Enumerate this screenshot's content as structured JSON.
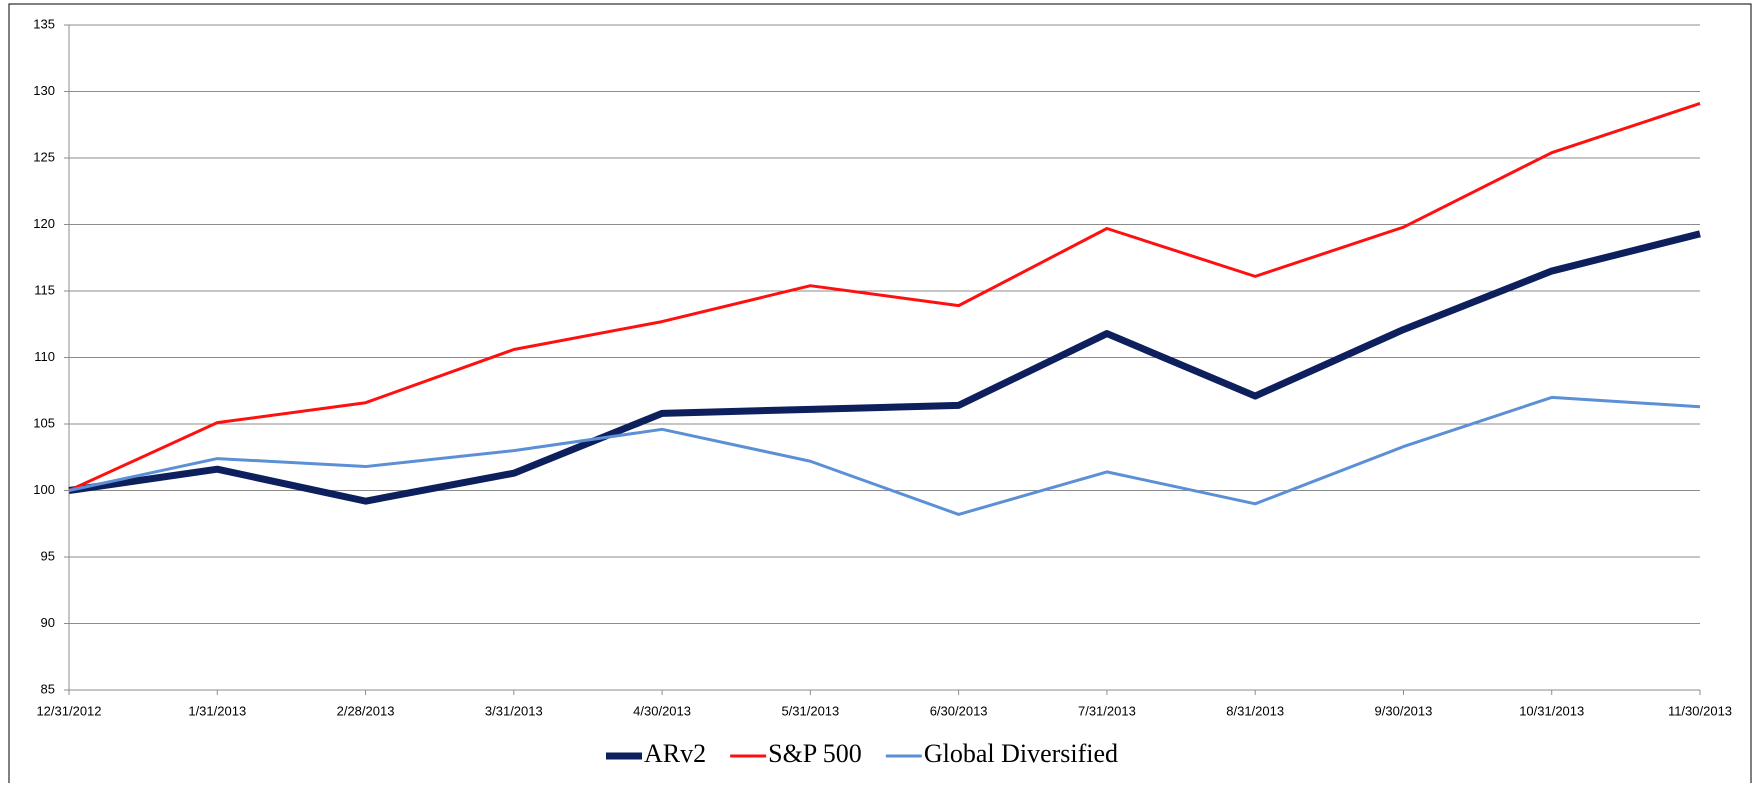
{
  "chart_data": {
    "type": "line",
    "categories": [
      "12/31/2012",
      "1/31/2013",
      "2/28/2013",
      "3/31/2013",
      "4/30/2013",
      "5/31/2013",
      "6/30/2013",
      "7/31/2013",
      "8/31/2013",
      "9/30/2013",
      "10/31/2013",
      "11/30/2013"
    ],
    "series": [
      {
        "name": "ARv2",
        "color": "#0d1f5c",
        "values": [
          100,
          101.6,
          99.2,
          101.3,
          105.8,
          106.1,
          106.4,
          111.8,
          107.1,
          112.1,
          116.5,
          119.3
        ]
      },
      {
        "name": "S&P 500",
        "color": "#ff1010",
        "values": [
          100,
          105.1,
          106.6,
          110.6,
          112.7,
          115.4,
          113.9,
          119.7,
          116.1,
          119.8,
          125.4,
          129.1
        ]
      },
      {
        "name": "Global Diversified",
        "color": "#5b8fd6",
        "values": [
          100,
          102.4,
          101.8,
          103.0,
          104.6,
          102.2,
          98.2,
          101.4,
          99.0,
          103.3,
          107.0,
          106.3
        ]
      }
    ],
    "ylim": [
      85,
      135
    ],
    "yticks": [
      85,
      90,
      95,
      100,
      105,
      110,
      115,
      120,
      125,
      130,
      135
    ],
    "grid": true,
    "legend": "bottom"
  }
}
